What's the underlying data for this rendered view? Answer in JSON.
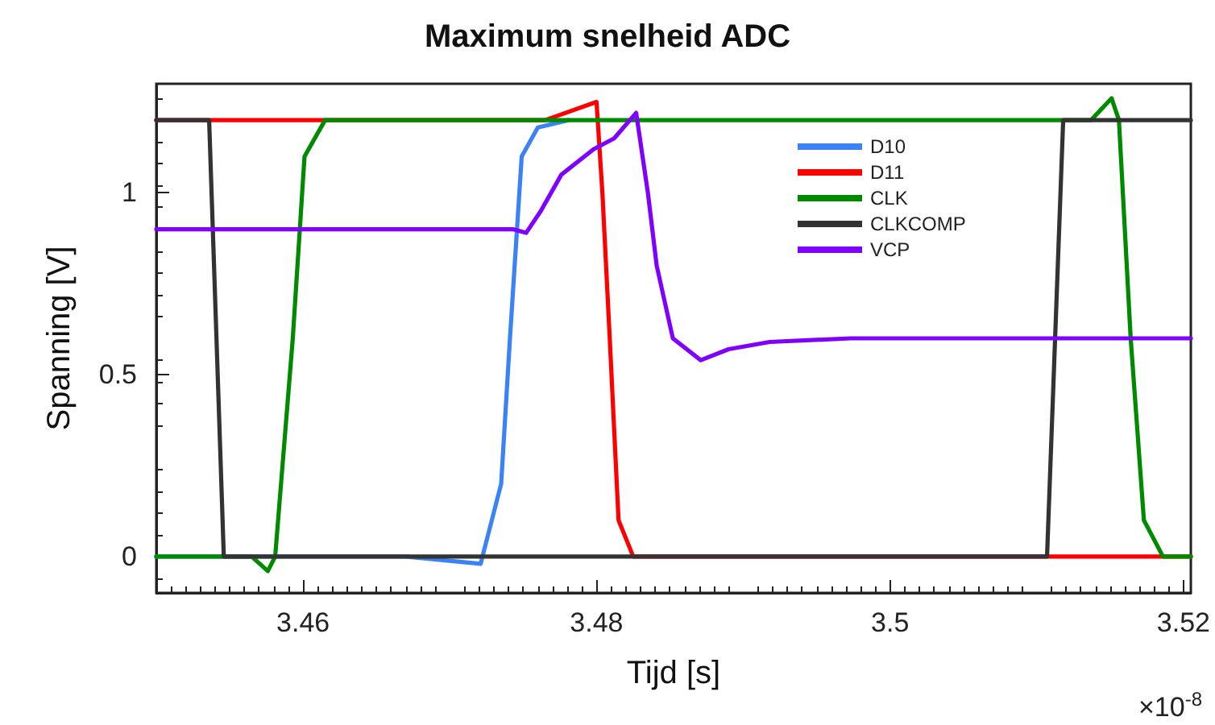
{
  "chart_data": {
    "type": "line",
    "title": "Maximum snelheid ADC",
    "xlabel": "Tijd [s]",
    "ylabel": "Spanning [V]",
    "annotations": [
      "×10$^{-8}$"
    ],
    "xlim": [
      3.45,
      3.5205
    ],
    "xticks": [
      3.46,
      3.48,
      3.5,
      3.52
    ],
    "ylim": [
      -0.1,
      1.3
    ],
    "yticks": [
      0,
      0.5,
      1
    ],
    "grid": false,
    "legend": "top right",
    "marker": "none",
    "line_style": "solid",
    "series": [
      {
        "name": "D10",
        "color": "#3b82f6",
        "x": [
          3.45,
          3.467,
          3.4721,
          3.4735,
          3.4741,
          3.4749,
          3.476,
          3.4781
        ],
        "values": [
          0,
          0,
          -0.02,
          0.2,
          0.6,
          1.1,
          1.18,
          1.2
        ]
      },
      {
        "name": "D11",
        "color": "#ff0000",
        "x": [
          3.45,
          3.4765,
          3.48,
          3.4804,
          3.4809,
          3.4815,
          3.4825,
          3.5205
        ],
        "values": [
          1.2,
          1.2,
          1.25,
          1.0,
          0.6,
          0.1,
          0,
          0
        ]
      },
      {
        "name": "CLK",
        "color": "#008a00",
        "x": [
          3.45,
          3.4565,
          3.4576,
          3.4581,
          3.4593,
          3.4601,
          3.4615,
          3.5137,
          3.5151,
          3.5156,
          3.5164,
          3.5173,
          3.5186,
          3.5205
        ],
        "values": [
          0,
          0,
          -0.04,
          0,
          0.6,
          1.1,
          1.2,
          1.2,
          1.26,
          1.2,
          0.6,
          0.1,
          0,
          0
        ]
      },
      {
        "name": "CLKCOMP",
        "color": "#333333",
        "x": [
          3.45,
          3.4536,
          3.4546,
          3.5107,
          3.5118,
          3.5205
        ],
        "values": [
          1.2,
          1.2,
          0,
          0,
          1.2,
          1.2
        ]
      },
      {
        "name": "VCP",
        "color": "#7f00ff",
        "x": [
          3.45,
          3.4743,
          3.4752,
          3.4762,
          3.4776,
          3.4798,
          3.4812,
          3.4827,
          3.4835,
          3.4841,
          3.4852,
          3.4871,
          3.489,
          3.4918,
          3.4973,
          3.5205
        ],
        "values": [
          0.9,
          0.9,
          0.89,
          0.95,
          1.05,
          1.12,
          1.15,
          1.22,
          1.0,
          0.8,
          0.6,
          0.54,
          0.57,
          0.59,
          0.6,
          0.6
        ]
      }
    ]
  }
}
